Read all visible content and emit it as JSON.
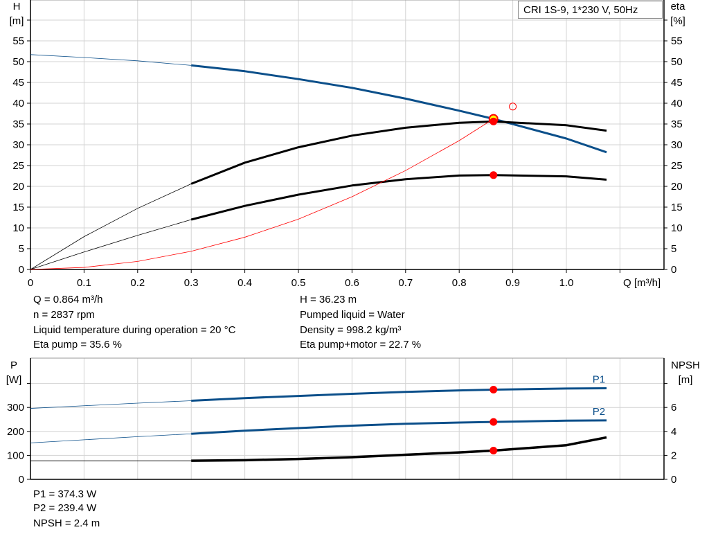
{
  "colors": {
    "blue": "#0b4f8a",
    "black": "#000000",
    "red": "#ff0000",
    "operating_point_fill": "#ffff00",
    "grid": "#d3d3d3"
  },
  "legend_box": "CRI 1S-9, 1*230 V, 50Hz",
  "info_top": {
    "left": [
      "Q = 0.864 m³/h",
      "n = 2837 rpm",
      "Liquid temperature during operation = 20 °C",
      "Eta pump = 35.6 %"
    ],
    "right": [
      "H = 36.23 m",
      "Pumped liquid = Water",
      "Density = 998.2 kg/m³",
      "Eta pump+motor = 22.7 %"
    ]
  },
  "info_bottom": [
    "P1 = 374.3 W",
    "P2 = 239.4 W",
    "NPSH = 2.4 m"
  ],
  "chart_data": [
    {
      "type": "line",
      "title": "",
      "ylabel_left": [
        "H",
        "[m]"
      ],
      "ylabel_right": [
        "eta",
        "[%]"
      ],
      "xlabel": "Q [m³/h]",
      "xlim": [
        0,
        1.18
      ],
      "ylim": [
        0,
        65
      ],
      "xticks": [
        "0",
        "0.1",
        "0.2",
        "0.3",
        "0.4",
        "0.5",
        "0.6",
        "0.7",
        "0.8",
        "0.9",
        "1.0"
      ],
      "yticks": [
        "0",
        "5",
        "10",
        "15",
        "20",
        "25",
        "30",
        "35",
        "40",
        "45",
        "50",
        "55"
      ],
      "grid": true,
      "series": [
        {
          "key": "H",
          "color": "#0b4f8a",
          "x": [
            0,
            0.1,
            0.2,
            0.3,
            0.4,
            0.5,
            0.6,
            0.7,
            0.8,
            0.864,
            1.0,
            1.075
          ],
          "y": [
            51.7,
            51.0,
            50.2,
            49.1,
            47.7,
            45.8,
            43.7,
            41.1,
            38.2,
            36.23,
            31.5,
            28.2
          ]
        },
        {
          "key": "eta_pump",
          "color": "#000000",
          "x": [
            0,
            0.1,
            0.2,
            0.3,
            0.4,
            0.5,
            0.6,
            0.7,
            0.8,
            0.864,
            1.0,
            1.075
          ],
          "y": [
            0,
            7.9,
            14.7,
            20.6,
            25.7,
            29.4,
            32.2,
            34.1,
            35.3,
            35.6,
            34.7,
            33.4
          ]
        },
        {
          "key": "eta_pump_motor",
          "color": "#000000",
          "x": [
            0,
            0.1,
            0.2,
            0.3,
            0.4,
            0.5,
            0.6,
            0.7,
            0.8,
            0.864,
            1.0,
            1.075
          ],
          "y": [
            0,
            4.2,
            8.2,
            12.0,
            15.3,
            18.0,
            20.2,
            21.7,
            22.6,
            22.7,
            22.4,
            21.6
          ]
        },
        {
          "key": "system_curve",
          "color": "#ff0000",
          "x": [
            0,
            0.1,
            0.2,
            0.3,
            0.4,
            0.5,
            0.6,
            0.7,
            0.8,
            0.864
          ],
          "y": [
            0,
            0.49,
            1.94,
            4.37,
            7.76,
            12.1,
            17.5,
            23.8,
            31.0,
            36.23
          ]
        }
      ],
      "duty_line_start_q": 0.3,
      "operating_point": {
        "q": 0.864,
        "h": 36.23,
        "eta_pump": 35.6,
        "eta_pump_motor": 22.7
      },
      "requested_point": {
        "q": 0.9,
        "h": 39.2
      }
    },
    {
      "type": "line",
      "ylabel_left": [
        "P",
        "[W]"
      ],
      "ylabel_right": [
        "NPSH",
        "[m]"
      ],
      "xlim": [
        0,
        1.18
      ],
      "ylim": [
        0,
        500
      ],
      "yticks_left": [
        "0",
        "100",
        "200",
        "300",
        ""
      ],
      "yticks_right": [
        "0",
        "2",
        "4",
        "6",
        ""
      ],
      "grid": true,
      "series": [
        {
          "key": "P1",
          "name": "P1",
          "color": "#0b4f8a",
          "x": [
            0,
            0.1,
            0.2,
            0.3,
            0.4,
            0.5,
            0.6,
            0.7,
            0.8,
            0.864,
            1.0,
            1.075
          ],
          "y": [
            296,
            307,
            318,
            328,
            339,
            348,
            357,
            365,
            371,
            374.3,
            379,
            380
          ]
        },
        {
          "key": "P2",
          "name": "P2",
          "color": "#0b4f8a",
          "x": [
            0,
            0.1,
            0.2,
            0.3,
            0.4,
            0.5,
            0.6,
            0.7,
            0.8,
            0.864,
            1.0,
            1.075
          ],
          "y": [
            152,
            165,
            178,
            190,
            203,
            214,
            224,
            232,
            237,
            239.4,
            245,
            246
          ]
        },
        {
          "key": "NPSH",
          "color": "#000000",
          "axis": "right",
          "x": [
            0,
            0.3,
            0.4,
            0.5,
            0.6,
            0.7,
            0.8,
            0.864,
            1.0,
            1.075
          ],
          "y": [
            1.55,
            1.55,
            1.6,
            1.7,
            1.85,
            2.05,
            2.25,
            2.4,
            2.85,
            3.5
          ]
        }
      ],
      "operating_point": {
        "q": 0.864,
        "p1": 374.3,
        "p2": 239.4,
        "npsh": 2.4
      }
    }
  ]
}
